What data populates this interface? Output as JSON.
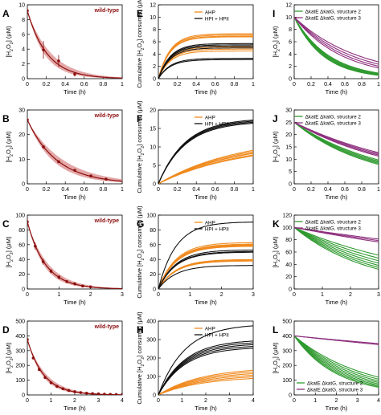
{
  "colors": {
    "wildtype": "#8b0d0d",
    "wildtype_band": "#d98a8a",
    "ahp": "#f08a1e",
    "hpi": "#111111",
    "struct2": "#2f9a2f",
    "struct3": "#8e2f7e"
  },
  "chart_data": [
    {
      "panel": "A",
      "type": "line",
      "title": "wild-type",
      "xlabel": "Time (h)",
      "ylabel": "[H2O2] (μM)",
      "xlim": [
        0,
        1
      ],
      "ylim": [
        0,
        10
      ],
      "xticks": [
        "0",
        "0.2",
        "0.4",
        "0.6",
        "0.8",
        "1"
      ],
      "yticks": [
        "0",
        "2",
        "4",
        "6",
        "8",
        "10"
      ],
      "series": [
        {
          "x": [
            0,
            0.17,
            0.33,
            0.5
          ],
          "values": [
            9.2,
            3.9,
            2.4,
            0.6
          ],
          "errors": [
            0.5,
            1.2,
            0.8,
            0.3
          ]
        }
      ],
      "model": {
        "y0": 9.2,
        "k": 4.8,
        "band": 1.0
      }
    },
    {
      "panel": "B",
      "type": "line",
      "title": "wild-type",
      "xlabel": "Time (h)",
      "ylabel": "[H2O2] (μM)",
      "xlim": [
        0,
        1
      ],
      "ylim": [
        0,
        30
      ],
      "xticks": [
        "0",
        "0.2",
        "0.4",
        "0.6",
        "0.8",
        "1"
      ],
      "yticks": [
        "0",
        "10",
        "20",
        "30"
      ],
      "series": [
        {
          "x": [
            0,
            0.17,
            0.33,
            0.5,
            0.67,
            0.83
          ],
          "values": [
            26,
            15,
            9,
            5.5,
            3.2,
            1.9
          ],
          "errors": [
            0.8,
            0.7,
            0.5,
            0.4,
            0.3,
            0.2
          ]
        }
      ],
      "model": {
        "y0": 26,
        "k": 3.2,
        "band": 1.0
      }
    },
    {
      "panel": "C",
      "type": "line",
      "title": "wild-type",
      "xlabel": "Time (h)",
      "ylabel": "[H2O2] (μM)",
      "xlim": [
        0,
        3
      ],
      "ylim": [
        0,
        100
      ],
      "xticks": [
        "0",
        "1",
        "2",
        "3"
      ],
      "yticks": [
        "0",
        "20",
        "40",
        "60",
        "80",
        "100"
      ],
      "series": [
        {
          "x": [
            0,
            0.25,
            0.5,
            0.75,
            1,
            1.25,
            1.5,
            1.75,
            2
          ],
          "values": [
            91,
            58,
            37,
            24,
            16,
            10,
            7,
            4,
            3
          ],
          "errors": [
            5,
            5,
            4,
            3,
            3,
            2,
            2,
            1,
            1
          ]
        }
      ],
      "model": {
        "y0": 91,
        "k": 1.75,
        "band": 0.8
      }
    },
    {
      "panel": "D",
      "type": "line",
      "title": "wild-type",
      "xlabel": "Time (h)",
      "ylabel": "[H2O2] (μM)",
      "xlim": [
        0,
        4
      ],
      "ylim": [
        0,
        500
      ],
      "xticks": [
        "0",
        "1",
        "2",
        "3",
        "4"
      ],
      "yticks": [
        "0",
        "100",
        "200",
        "300",
        "400",
        "500"
      ],
      "series": [
        {
          "x": [
            0,
            0.25,
            0.5,
            0.75,
            1,
            1.25,
            1.5,
            1.75,
            2,
            2.25,
            2.5,
            2.75,
            3,
            3.25,
            3.5,
            3.75,
            4
          ],
          "values": [
            375,
            250,
            172,
            118,
            82,
            58,
            42,
            30,
            22,
            16,
            12,
            9,
            7,
            5,
            4,
            3,
            2.5
          ],
          "errors": [
            12,
            8,
            6,
            5,
            4,
            3,
            3,
            2,
            2,
            2,
            1,
            1,
            1,
            1,
            1,
            1,
            1
          ]
        }
      ],
      "model": {
        "y0": 375,
        "k": 1.45,
        "band": 0.8
      }
    },
    {
      "panel": "E",
      "type": "line",
      "xlabel": "Time (h)",
      "ylabel": "Cumulative [H2O2] consumed (μM)",
      "xlim": [
        0,
        1
      ],
      "ylim": [
        0,
        12
      ],
      "xticks": [
        "0",
        "0.2",
        "0.4",
        "0.6",
        "0.8",
        "1"
      ],
      "yticks": [
        "0",
        "2",
        "4",
        "6",
        "8",
        "10",
        "12"
      ],
      "legend": {
        "position": "top-left",
        "entries": [
          "AHP",
          "HPI + HPII"
        ]
      },
      "series": [
        {
          "name": "AHP",
          "color_key": "ahp",
          "model": "saturating",
          "k": 8,
          "plateaus": [
            7.3,
            7.1,
            6.9,
            6.8,
            5.2,
            4.8,
            4.5
          ]
        },
        {
          "name": "HPI + HPII",
          "color_key": "hpi",
          "model": "saturating",
          "k": 8,
          "plateaus": [
            5.7,
            5.5,
            5.3,
            5.0,
            3.3,
            3.1
          ]
        }
      ]
    },
    {
      "panel": "F",
      "type": "line",
      "xlabel": "Time (h)",
      "ylabel": "Cumulative [H2O2] consumed (μM)",
      "xlim": [
        0,
        1
      ],
      "ylim": [
        0,
        20
      ],
      "xticks": [
        "0",
        "0.2",
        "0.4",
        "0.6",
        "0.8",
        "1"
      ],
      "yticks": [
        "0",
        "5",
        "10",
        "15",
        "20"
      ],
      "legend": {
        "position": "top-left",
        "entries": [
          "AHP",
          "HPI + HPII"
        ]
      },
      "series": [
        {
          "name": "AHP",
          "color_key": "ahp",
          "model": "saturating",
          "k": 1.2,
          "plateaus": [
            13,
            12.5,
            12,
            11.8,
            11.2,
            10.8
          ]
        },
        {
          "name": "HPI + HPII",
          "color_key": "hpi",
          "model": "saturating",
          "k": 3.5,
          "plateaus": [
            17.8,
            17.5,
            17.2,
            16.9
          ]
        }
      ]
    },
    {
      "panel": "G",
      "type": "line",
      "xlabel": "Time (h)",
      "ylabel": "Cumulative [H2O2] consumed (μM)",
      "xlim": [
        0,
        3
      ],
      "ylim": [
        0,
        100
      ],
      "xticks": [
        "0",
        "1",
        "2",
        "3"
      ],
      "yticks": [
        "0",
        "20",
        "40",
        "60",
        "80",
        "100"
      ],
      "legend": {
        "position": "top-left",
        "entries": [
          "AHP",
          "HPI + HPII"
        ]
      },
      "series": [
        {
          "name": "AHP",
          "color_key": "ahp",
          "model": "saturating",
          "k": 1.8,
          "plateaus": [
            63,
            61,
            60,
            59,
            58,
            40,
            39,
            38
          ]
        },
        {
          "name": "HPI + HPII",
          "color_key": "hpi",
          "model": "saturating",
          "k": 1.8,
          "plateaus": [
            91,
            53,
            51,
            50,
            32
          ]
        }
      ]
    },
    {
      "panel": "H",
      "type": "line",
      "xlabel": "Time (h)",
      "ylabel": "Cumulative [H2O2] consumed (μM)",
      "xlim": [
        0,
        4
      ],
      "ylim": [
        0,
        400
      ],
      "xticks": [
        "0",
        "1",
        "2",
        "3",
        "4"
      ],
      "yticks": [
        "0",
        "100",
        "200",
        "300",
        "400"
      ],
      "legend": {
        "position": "top-left",
        "entries": [
          "AHP",
          "HPI + HPII"
        ]
      },
      "series": [
        {
          "name": "AHP",
          "color_key": "ahp",
          "model": "saturating",
          "k": 0.55,
          "plateaus": [
            150,
            140,
            130,
            120,
            110,
            100
          ]
        },
        {
          "name": "HPI + HPII",
          "color_key": "hpi",
          "model": "saturating",
          "k": 0.9,
          "plateaus": [
            385,
            300,
            290,
            280,
            270,
            260
          ]
        }
      ]
    },
    {
      "panel": "I",
      "type": "line",
      "xlabel": "Time (h)",
      "ylabel": "[H2O2] (μM)",
      "xlim": [
        0,
        1
      ],
      "ylim": [
        0,
        12
      ],
      "xticks": [
        "0",
        "0.2",
        "0.4",
        "0.6",
        "0.8",
        "1"
      ],
      "yticks": [
        "0",
        "2",
        "4",
        "6",
        "8",
        "10",
        "12"
      ],
      "legend": {
        "position": "top-right",
        "entries": [
          "ΔkatE ΔkatG, structure 2",
          "ΔkatE ΔkatG, structure 3"
        ]
      },
      "series": [
        {
          "name": "ΔkatE ΔkatG, structure 2",
          "color_key": "struct2",
          "model": "decay",
          "y0": 10,
          "rates": [
            2.4,
            2.5,
            2.6,
            2.7,
            2.8,
            2.9
          ]
        },
        {
          "name": "ΔkatE ΔkatG, structure 3",
          "color_key": "struct3",
          "model": "decay",
          "y0": 10,
          "rates": [
            1.3,
            1.45,
            1.6,
            1.75
          ]
        }
      ]
    },
    {
      "panel": "J",
      "type": "line",
      "xlabel": "Time (h)",
      "ylabel": "[H2O2] (μM)",
      "xlim": [
        0,
        1
      ],
      "ylim": [
        0,
        30
      ],
      "xticks": [
        "0",
        "0.2",
        "0.4",
        "0.6",
        "0.8",
        "1"
      ],
      "yticks": [
        "0",
        "5",
        "10",
        "15",
        "20",
        "25",
        "30"
      ],
      "legend": {
        "position": "top-right",
        "entries": [
          "ΔkatE ΔkatG, structure 2",
          "ΔkatE ΔkatG, structure 3"
        ]
      },
      "series": [
        {
          "name": "ΔkatE ΔkatG, structure 2",
          "color_key": "struct2",
          "model": "decay",
          "y0": 25,
          "rates": [
            0.95,
            1.0,
            1.05,
            1.1,
            1.15
          ]
        },
        {
          "name": "ΔkatE ΔkatG, structure 3",
          "color_key": "struct3",
          "model": "decay",
          "y0": 25,
          "rates": [
            0.68,
            0.72,
            0.76,
            0.8
          ]
        }
      ]
    },
    {
      "panel": "K",
      "type": "line",
      "xlabel": "Time (h)",
      "ylabel": "[H2O2] (μM)",
      "xlim": [
        0,
        3
      ],
      "ylim": [
        0,
        120
      ],
      "xticks": [
        "0",
        "1",
        "2",
        "3"
      ],
      "yticks": [
        "0",
        "20",
        "40",
        "60",
        "80",
        "100",
        "120"
      ],
      "legend": {
        "position": "top-right",
        "entries": [
          "ΔkatE ΔkatG, structure 2",
          "ΔkatE ΔkatG, structure 3"
        ]
      },
      "series": [
        {
          "name": "ΔkatE ΔkatG, structure 2",
          "color_key": "struct2",
          "model": "decay",
          "y0": 100,
          "rates": [
            0.2,
            0.23,
            0.26,
            0.29,
            0.32,
            0.35,
            0.38
          ]
        },
        {
          "name": "ΔkatE ΔkatG, structure 3",
          "color_key": "struct3",
          "model": "decay",
          "y0": 100,
          "rates": [
            0.07,
            0.08,
            0.09
          ]
        }
      ]
    },
    {
      "panel": "L",
      "type": "line",
      "xlabel": "Time (h)",
      "ylabel": "[H2O2] (μM)",
      "xlim": [
        0,
        4
      ],
      "ylim": [
        0,
        500
      ],
      "xticks": [
        "0",
        "1",
        "2",
        "3",
        "4"
      ],
      "yticks": [
        "0",
        "100",
        "200",
        "300",
        "400",
        "500"
      ],
      "legend": {
        "position": "bottom-left",
        "entries": [
          "ΔkatE ΔkatG, structure 2",
          "ΔkatE ΔkatG, structure 3"
        ]
      },
      "series": [
        {
          "name": "ΔkatE ΔkatG, structure 2",
          "color_key": "struct2",
          "model": "decay",
          "y0": 400,
          "rates": [
            0.3,
            0.33,
            0.36,
            0.39,
            0.42,
            0.45,
            0.48,
            0.51
          ]
        },
        {
          "name": "ΔkatE ΔkatG, structure 3",
          "color_key": "struct3",
          "model": "decay",
          "y0": 400,
          "rates": [
            0.035,
            0.04
          ]
        }
      ]
    }
  ]
}
